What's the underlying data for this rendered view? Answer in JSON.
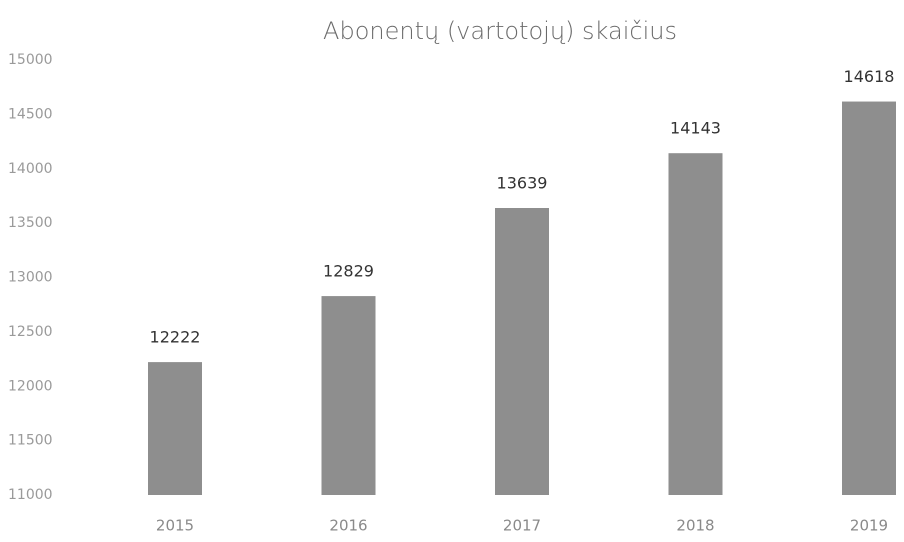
{
  "chart_data": {
    "type": "bar",
    "title": "Abonentų (vartotojų) skaičius",
    "categories": [
      "2015",
      "2016",
      "2017",
      "2018",
      "2019"
    ],
    "values": [
      12222,
      12829,
      13639,
      14143,
      14618
    ],
    "color": "#8e8e8e",
    "ylim": [
      11000,
      15000
    ],
    "yticks": [
      11000,
      11500,
      12000,
      12500,
      13000,
      13500,
      14000,
      14500,
      15000
    ],
    "grid": false
  }
}
